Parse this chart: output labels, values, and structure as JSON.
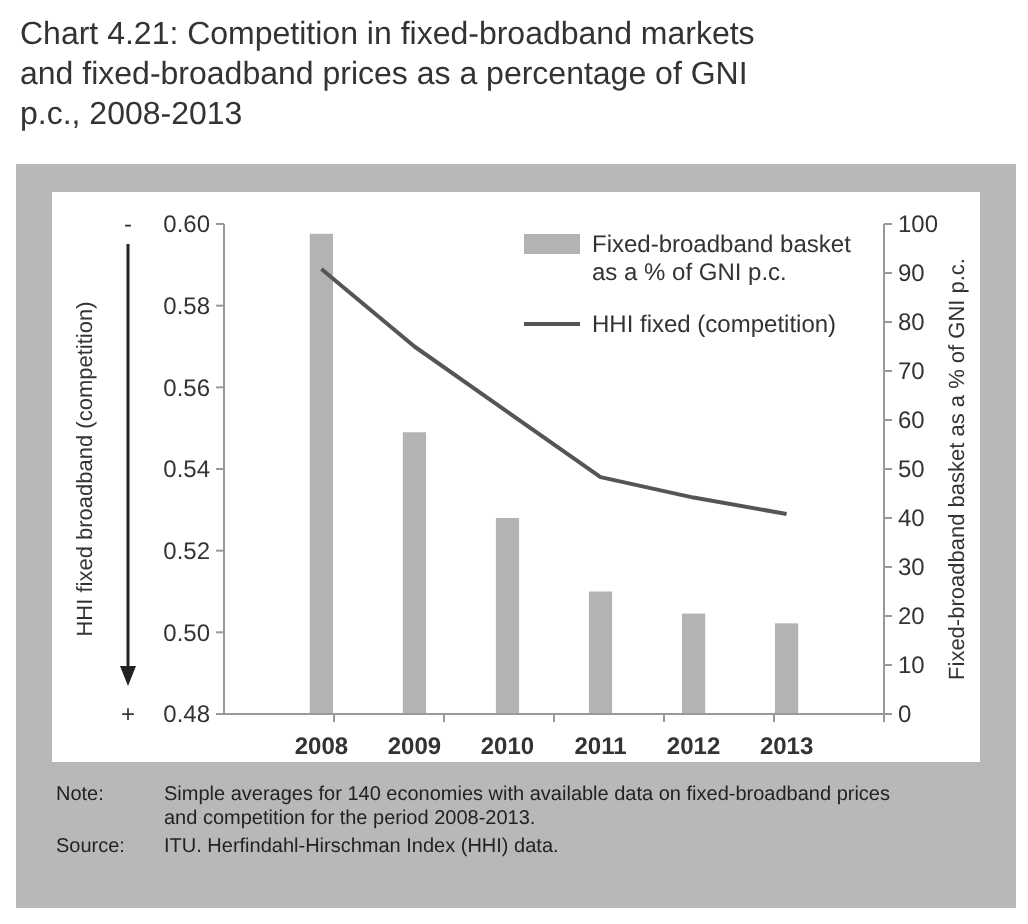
{
  "chart_data": {
    "type": "bar",
    "title": "Chart 4.21: Competition in fixed-broadband markets and fixed-broadband prices as a percentage of GNI p.c., 2008-2013",
    "categories": [
      "2008",
      "2009",
      "2010",
      "2011",
      "2012",
      "2013"
    ],
    "series": [
      {
        "name": "Fixed-broadband basket as a % of GNI p.c.",
        "axis": "y2",
        "color": "#b3b3b3",
        "values": [
          98,
          57.5,
          40,
          25,
          20.5,
          18.5
        ]
      },
      {
        "name": "HHI fixed (competition)",
        "type": "line",
        "color": "#555555",
        "values": [
          0.589,
          0.57,
          0.554,
          0.538,
          0.533,
          0.529
        ]
      }
    ],
    "ylabel": "HHI fixed broadband (competition)",
    "y2label": "Fixed-broadband basket as a % of GNI p.c.",
    "ylim": [
      0.48,
      0.6
    ],
    "yticks": [
      0.48,
      {
        "value": 0.5,
        "label": "0.50"
      },
      0.52,
      0.54,
      0.56,
      0.58,
      {
        "value": 0.6,
        "label": "0.60"
      }
    ],
    "y2lim": [
      0,
      100
    ],
    "y2ticks": [
      0,
      10,
      20,
      30,
      40,
      50,
      60,
      70,
      80,
      90,
      100
    ],
    "legend": "top right",
    "grid": false,
    "annotations": [
      "-",
      "+",
      "Note: Simple averages for 140 economies with available data on fixed-broadband prices and competition for the period 2008-2013.",
      "Source: ITU. Herfindahl-Hirschman Index (HHI) data."
    ]
  }
}
